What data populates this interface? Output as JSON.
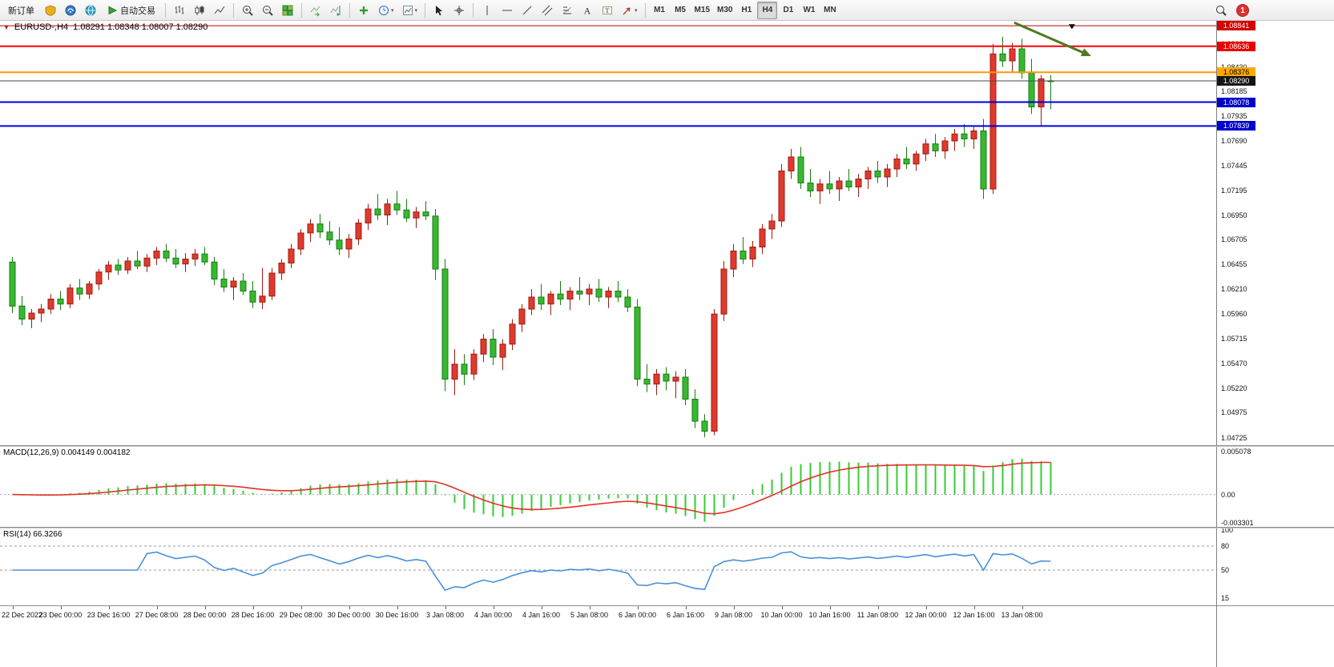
{
  "toolbar": {
    "new_order": "新订单",
    "auto_trading": "自动交易",
    "timeframes": [
      "M1",
      "M5",
      "M15",
      "M30",
      "H1",
      "H4",
      "D1",
      "W1",
      "MN"
    ],
    "active_timeframe": "H4",
    "notification_badge": "1"
  },
  "icons": {
    "symbol_caret": "▼",
    "dropdown_caret": "▾",
    "text_tool": "A",
    "label_tool": "T"
  },
  "main_chart": {
    "symbol_title": "EURUSD-,H4",
    "ohlc": "1.08291 1.08348 1.08007 1.08290",
    "price_axis_labels": [
      "1.08660",
      "1.08430",
      "1.08185",
      "1.07935",
      "1.07690",
      "1.07445",
      "1.07195",
      "1.06950",
      "1.06705",
      "1.06455",
      "1.06210",
      "1.05960",
      "1.05715",
      "1.05470",
      "1.05220",
      "1.04975",
      "1.04725"
    ],
    "price_lines": [
      {
        "name": "hline-tag-red-upper",
        "price": 1.08841,
        "label": "1.08841",
        "color": "#c00000",
        "width": 1,
        "tag_bg": "#d40000",
        "tag_fg": "#ffffff"
      },
      {
        "name": "hline-tag-red",
        "price": 1.08636,
        "label": "1.08636",
        "color": "#ff0000",
        "width": 2,
        "tag_bg": "#e80000",
        "tag_fg": "#ffffff"
      },
      {
        "name": "hline-tag-orange",
        "price": 1.08376,
        "label": "1.08376",
        "color": "#ff9900",
        "width": 2,
        "tag_bg": "#ffaa00",
        "tag_fg": "#000000"
      },
      {
        "name": "current-price-tag",
        "price": 1.0829,
        "label": "1.08290",
        "color": "#4a4a4a",
        "width": 1,
        "tag_bg": "#151515",
        "tag_fg": "#ffffff"
      },
      {
        "name": "hline-tag-blue-upper",
        "price": 1.08078,
        "label": "1.08078",
        "color": "#0000e0",
        "width": 2,
        "tag_bg": "#0000cc",
        "tag_fg": "#ffffff"
      },
      {
        "name": "hline-tag-blue-lower",
        "price": 1.07839,
        "label": "1.07839",
        "color": "#0000e0",
        "width": 2,
        "tag_bg": "#0000cc",
        "tag_fg": "#ffffff"
      }
    ]
  },
  "macd_panel": {
    "title": "MACD(12,26,9) 0.004149 0.004182",
    "axis_labels": [
      "0.005078",
      "0.00",
      "-0.003301"
    ]
  },
  "rsi_panel": {
    "title": "RSI(14) 66.3266",
    "axis_labels": [
      "100",
      "80",
      "50",
      "15"
    ],
    "levels": [
      80,
      50
    ]
  },
  "chart_data": {
    "type": "candlestick",
    "symbol": "EURUSD",
    "timeframe": "H4",
    "ohlc_current": {
      "open": 1.08291,
      "high": 1.08348,
      "low": 1.08007,
      "close": 1.0829
    },
    "price_axis": {
      "min": 1.0465,
      "max": 1.0889
    },
    "colors": {
      "bull": "#e0392e",
      "bull_border": "#9c1d12",
      "bear": "#38b830",
      "bear_border": "#177c12"
    },
    "label_step": 5,
    "time_labels": [
      "22 Dec 2022",
      "23 Dec 00:00",
      "23 Dec 16:00",
      "27 Dec 08:00",
      "28 Dec 00:00",
      "28 Dec 16:00",
      "29 Dec 08:00",
      "30 Dec 00:00",
      "30 Dec 16:00",
      "3 Jan 08:00",
      "4 Jan 00:00",
      "4 Jan 16:00",
      "5 Jan 08:00",
      "6 Jan 00:00",
      "6 Jan 16:00",
      "9 Jan 08:00",
      "10 Jan 00:00",
      "10 Jan 16:00",
      "11 Jan 08:00",
      "12 Jan 00:00",
      "12 Jan 16:00",
      "13 Jan 08:00"
    ],
    "candles": [
      [
        1.0648,
        1.0653,
        1.0597,
        1.0604
      ],
      [
        1.0604,
        1.0614,
        1.0585,
        1.0591
      ],
      [
        1.0591,
        1.0601,
        1.0582,
        1.0597
      ],
      [
        1.0597,
        1.0606,
        1.0588,
        1.0601
      ],
      [
        1.0601,
        1.0616,
        1.0596,
        1.0611
      ],
      [
        1.0611,
        1.0619,
        1.06,
        1.0606
      ],
      [
        1.0606,
        1.0626,
        1.0602,
        1.0622
      ],
      [
        1.0622,
        1.0631,
        1.061,
        1.0616
      ],
      [
        1.0616,
        1.0629,
        1.0611,
        1.0626
      ],
      [
        1.0626,
        1.0641,
        1.062,
        1.0638
      ],
      [
        1.0638,
        1.0649,
        1.063,
        1.0645
      ],
      [
        1.0645,
        1.0651,
        1.0635,
        1.064
      ],
      [
        1.064,
        1.0653,
        1.0636,
        1.0649
      ],
      [
        1.0649,
        1.0659,
        1.0641,
        1.0644
      ],
      [
        1.0644,
        1.0656,
        1.0638,
        1.0652
      ],
      [
        1.0652,
        1.0663,
        1.0645,
        1.0659
      ],
      [
        1.0659,
        1.0666,
        1.0648,
        1.0652
      ],
      [
        1.0652,
        1.0661,
        1.0642,
        1.0646
      ],
      [
        1.0646,
        1.0657,
        1.0638,
        1.0651
      ],
      [
        1.0651,
        1.0661,
        1.0644,
        1.0656
      ],
      [
        1.0656,
        1.0663,
        1.0645,
        1.0648
      ],
      [
        1.0648,
        1.0653,
        1.0625,
        1.0631
      ],
      [
        1.0631,
        1.0641,
        1.0618,
        1.0623
      ],
      [
        1.0623,
        1.0633,
        1.061,
        1.0629
      ],
      [
        1.0629,
        1.0637,
        1.0615,
        1.0619
      ],
      [
        1.0619,
        1.0629,
        1.0602,
        1.0608
      ],
      [
        1.0608,
        1.0642,
        1.0601,
        1.0614
      ],
      [
        1.0614,
        1.0642,
        1.061,
        1.0637
      ],
      [
        1.0637,
        1.0651,
        1.063,
        1.0647
      ],
      [
        1.0647,
        1.0666,
        1.0642,
        1.0661
      ],
      [
        1.0661,
        1.0681,
        1.0655,
        1.0677
      ],
      [
        1.0677,
        1.0691,
        1.0668,
        1.0686
      ],
      [
        1.0686,
        1.0696,
        1.0672,
        1.0678
      ],
      [
        1.0678,
        1.0689,
        1.0665,
        1.067
      ],
      [
        1.067,
        1.0683,
        1.0655,
        1.0661
      ],
      [
        1.0661,
        1.0676,
        1.0652,
        1.0671
      ],
      [
        1.0671,
        1.0691,
        1.0665,
        1.0687
      ],
      [
        1.0687,
        1.0706,
        1.068,
        1.0701
      ],
      [
        1.0701,
        1.0716,
        1.069,
        1.0695
      ],
      [
        1.0695,
        1.0711,
        1.0685,
        1.0706
      ],
      [
        1.0706,
        1.0719,
        1.0695,
        1.07
      ],
      [
        1.07,
        1.0711,
        1.0688,
        1.0692
      ],
      [
        1.0692,
        1.0703,
        1.0682,
        1.0698
      ],
      [
        1.0698,
        1.0709,
        1.069,
        1.0694
      ],
      [
        1.0694,
        1.0701,
        1.063,
        1.0641
      ],
      [
        1.0641,
        1.0651,
        1.0519,
        1.0531
      ],
      [
        1.0531,
        1.0561,
        1.0515,
        1.0546
      ],
      [
        1.0546,
        1.0556,
        1.0525,
        1.0536
      ],
      [
        1.0536,
        1.0561,
        1.053,
        1.0556
      ],
      [
        1.0556,
        1.0576,
        1.0548,
        1.0571
      ],
      [
        1.0571,
        1.0581,
        1.0545,
        1.0553
      ],
      [
        1.0553,
        1.0571,
        1.054,
        1.0566
      ],
      [
        1.0566,
        1.0591,
        1.056,
        1.0586
      ],
      [
        1.0586,
        1.0606,
        1.0578,
        1.0601
      ],
      [
        1.0601,
        1.0621,
        1.0595,
        1.0613
      ],
      [
        1.0613,
        1.0626,
        1.06,
        1.0606
      ],
      [
        1.0606,
        1.0619,
        1.0595,
        1.0616
      ],
      [
        1.0616,
        1.0629,
        1.0605,
        1.0611
      ],
      [
        1.0611,
        1.0623,
        1.06,
        1.0619
      ],
      [
        1.0619,
        1.0633,
        1.061,
        1.0616
      ],
      [
        1.0616,
        1.0626,
        1.0605,
        1.0621
      ],
      [
        1.0621,
        1.0631,
        1.0608,
        1.0613
      ],
      [
        1.0613,
        1.0623,
        1.0602,
        1.0619
      ],
      [
        1.0619,
        1.0629,
        1.0608,
        1.0613
      ],
      [
        1.0613,
        1.0621,
        1.0598,
        1.0603
      ],
      [
        1.0603,
        1.0611,
        1.0524,
        1.0531
      ],
      [
        1.0531,
        1.0546,
        1.0518,
        1.0526
      ],
      [
        1.0526,
        1.0541,
        1.0515,
        1.0536
      ],
      [
        1.0536,
        1.0543,
        1.052,
        1.0529
      ],
      [
        1.0529,
        1.0539,
        1.0512,
        1.0533
      ],
      [
        1.0533,
        1.0541,
        1.0505,
        1.0511
      ],
      [
        1.0511,
        1.0521,
        1.0482,
        1.0489
      ],
      [
        1.0489,
        1.0496,
        1.0473,
        1.0479
      ],
      [
        1.0479,
        1.0601,
        1.0475,
        1.0596
      ],
      [
        1.0596,
        1.0649,
        1.0589,
        1.0641
      ],
      [
        1.0641,
        1.0666,
        1.0633,
        1.0659
      ],
      [
        1.0659,
        1.0673,
        1.0646,
        1.0651
      ],
      [
        1.0651,
        1.0669,
        1.0643,
        1.0663
      ],
      [
        1.0663,
        1.0686,
        1.0656,
        1.0681
      ],
      [
        1.0681,
        1.0696,
        1.0671,
        1.0689
      ],
      [
        1.0689,
        1.0746,
        1.0683,
        1.0739
      ],
      [
        1.0739,
        1.0761,
        1.0731,
        1.0753
      ],
      [
        1.0753,
        1.0763,
        1.0721,
        1.0727
      ],
      [
        1.0727,
        1.0741,
        1.0713,
        1.0719
      ],
      [
        1.0719,
        1.0731,
        1.0706,
        1.0726
      ],
      [
        1.0726,
        1.0739,
        1.0716,
        1.0721
      ],
      [
        1.0721,
        1.0733,
        1.0709,
        1.0729
      ],
      [
        1.0729,
        1.0741,
        1.0719,
        1.0723
      ],
      [
        1.0723,
        1.0736,
        1.0713,
        1.0731
      ],
      [
        1.0731,
        1.0743,
        1.0721,
        1.0739
      ],
      [
        1.0739,
        1.0749,
        1.0727,
        1.0733
      ],
      [
        1.0733,
        1.0746,
        1.0723,
        1.0741
      ],
      [
        1.0741,
        1.0756,
        1.0733,
        1.0751
      ],
      [
        1.0751,
        1.0763,
        1.0741,
        1.0746
      ],
      [
        1.0746,
        1.0759,
        1.0739,
        1.0756
      ],
      [
        1.0756,
        1.0771,
        1.0749,
        1.0766
      ],
      [
        1.0766,
        1.0776,
        1.0753,
        1.0759
      ],
      [
        1.0759,
        1.0773,
        1.0751,
        1.0769
      ],
      [
        1.0769,
        1.0781,
        1.0759,
        1.0776
      ],
      [
        1.0776,
        1.0786,
        1.0763,
        1.0771
      ],
      [
        1.0771,
        1.0783,
        1.0761,
        1.0779
      ],
      [
        1.0779,
        1.0791,
        1.0711,
        1.0721
      ],
      [
        1.0721,
        1.0866,
        1.0716,
        1.0856
      ],
      [
        1.0856,
        1.0873,
        1.0843,
        1.0849
      ],
      [
        1.0849,
        1.0867,
        1.0837,
        1.0861
      ],
      [
        1.0861,
        1.0871,
        1.0831,
        1.0837
      ],
      [
        1.0837,
        1.0851,
        1.0796,
        1.0803
      ],
      [
        1.0803,
        1.0835,
        1.0784,
        1.0831
      ],
      [
        1.08291,
        1.08348,
        1.08007,
        1.0829
      ]
    ],
    "indicators": {
      "macd": {
        "params": [
          12,
          26,
          9
        ],
        "main_current": 0.004149,
        "signal_current": 0.004182,
        "axis_max": 0.0056,
        "axis_min": -0.0038,
        "histogram_color": "#36cc36",
        "signal_color": "#e03224"
      },
      "rsi": {
        "period": 14,
        "current": 66.3266,
        "line_color": "#4a90d9"
      }
    },
    "annotations": [
      {
        "type": "arrow",
        "from_candle": 104.2,
        "from_price": 1.08872,
        "to_candle": 112.2,
        "to_price": 1.08538,
        "color": "#4c7a21"
      },
      {
        "type": "triangle_marker",
        "at_candle": 110.2,
        "price": 1.08856,
        "color": "#000000"
      }
    ]
  }
}
